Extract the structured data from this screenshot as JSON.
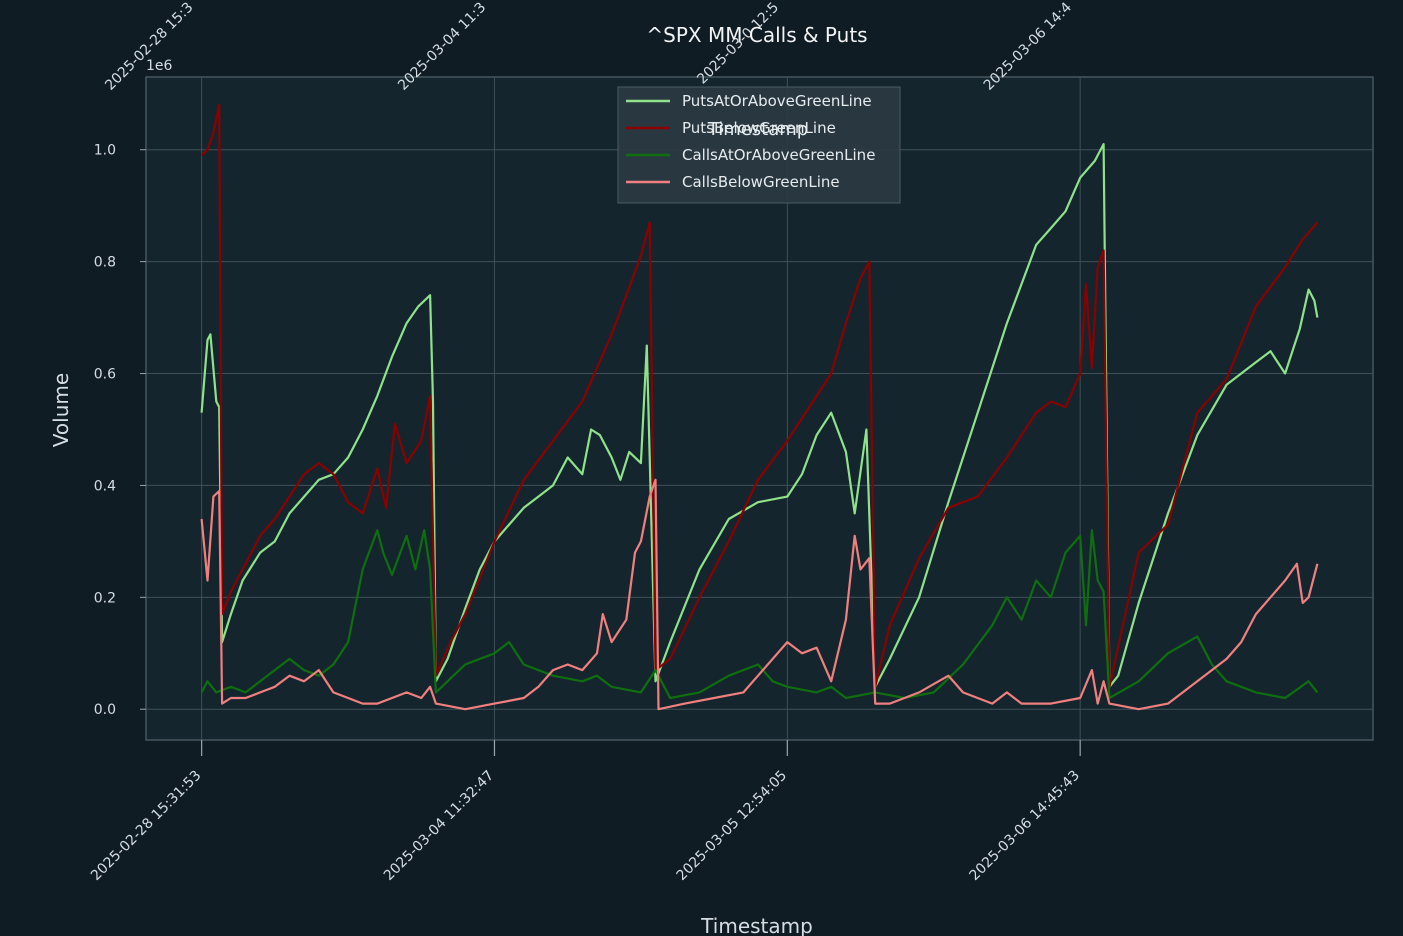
{
  "chart_data": {
    "type": "line",
    "title": "^SPX MM Calls & Puts",
    "xlabel": "Timestamp",
    "ylabel": "Volume",
    "y_offset_label": "1e6",
    "ylim": [
      -0.055,
      1.13
    ],
    "yticks": [
      0.0,
      0.2,
      0.4,
      0.6,
      0.8,
      1.0
    ],
    "ytick_labels": [
      "0.0",
      "0.2",
      "0.4",
      "0.6",
      "0.8",
      "1.0"
    ],
    "xlim": [
      -0.19,
      4.0
    ],
    "xticks": [
      0,
      1,
      2,
      3
    ],
    "xtick_labels": [
      "2025-02-28 15:31:53",
      "2025-03-04 11:32:47",
      "2025-03-05 12:54:05",
      "2025-03-06 14:45:43"
    ],
    "top_xtick_labels": [
      "2025-02-28 15:3",
      "2025-03-04 11:3",
      "2025-03-0 12:5",
      "2025-03-06 14:4"
    ],
    "ghost_top_label": "Timestamp",
    "grid": true,
    "legend_position": "top-center",
    "y_unit_scale": 1000000,
    "series": [
      {
        "name": "PutsAtOrAboveGreenLine",
        "color": "#8fe28a",
        "points": [
          [
            0.0,
            0.53
          ],
          [
            0.02,
            0.66
          ],
          [
            0.03,
            0.67
          ],
          [
            0.05,
            0.55
          ],
          [
            0.06,
            0.54
          ],
          [
            0.07,
            0.12
          ],
          [
            0.1,
            0.17
          ],
          [
            0.14,
            0.23
          ],
          [
            0.2,
            0.28
          ],
          [
            0.25,
            0.3
          ],
          [
            0.3,
            0.35
          ],
          [
            0.35,
            0.38
          ],
          [
            0.4,
            0.41
          ],
          [
            0.45,
            0.42
          ],
          [
            0.5,
            0.45
          ],
          [
            0.55,
            0.5
          ],
          [
            0.6,
            0.56
          ],
          [
            0.65,
            0.63
          ],
          [
            0.7,
            0.69
          ],
          [
            0.74,
            0.72
          ],
          [
            0.78,
            0.74
          ],
          [
            0.79,
            0.55
          ],
          [
            0.8,
            0.05
          ],
          [
            0.84,
            0.09
          ],
          [
            0.9,
            0.18
          ],
          [
            0.95,
            0.25
          ],
          [
            1.0,
            0.3
          ],
          [
            1.05,
            0.33
          ],
          [
            1.1,
            0.36
          ],
          [
            1.15,
            0.38
          ],
          [
            1.2,
            0.4
          ],
          [
            1.25,
            0.45
          ],
          [
            1.3,
            0.42
          ],
          [
            1.33,
            0.5
          ],
          [
            1.36,
            0.49
          ],
          [
            1.4,
            0.45
          ],
          [
            1.43,
            0.41
          ],
          [
            1.46,
            0.46
          ],
          [
            1.5,
            0.44
          ],
          [
            1.52,
            0.65
          ],
          [
            1.55,
            0.05
          ],
          [
            1.6,
            0.12
          ],
          [
            1.7,
            0.25
          ],
          [
            1.8,
            0.34
          ],
          [
            1.9,
            0.37
          ],
          [
            2.0,
            0.38
          ],
          [
            2.05,
            0.42
          ],
          [
            2.1,
            0.49
          ],
          [
            2.15,
            0.53
          ],
          [
            2.2,
            0.46
          ],
          [
            2.23,
            0.35
          ],
          [
            2.27,
            0.5
          ],
          [
            2.3,
            0.04
          ],
          [
            2.35,
            0.09
          ],
          [
            2.45,
            0.2
          ],
          [
            2.55,
            0.37
          ],
          [
            2.65,
            0.53
          ],
          [
            2.75,
            0.69
          ],
          [
            2.85,
            0.83
          ],
          [
            2.9,
            0.86
          ],
          [
            2.95,
            0.89
          ],
          [
            3.0,
            0.95
          ],
          [
            3.05,
            0.98
          ],
          [
            3.08,
            1.01
          ],
          [
            3.1,
            0.04
          ],
          [
            3.13,
            0.06
          ],
          [
            3.2,
            0.19
          ],
          [
            3.3,
            0.35
          ],
          [
            3.4,
            0.49
          ],
          [
            3.5,
            0.58
          ],
          [
            3.55,
            0.6
          ],
          [
            3.6,
            0.62
          ],
          [
            3.65,
            0.64
          ],
          [
            3.7,
            0.6
          ],
          [
            3.75,
            0.68
          ],
          [
            3.78,
            0.75
          ],
          [
            3.8,
            0.73
          ],
          [
            3.81,
            0.7
          ]
        ]
      },
      {
        "name": "PutsBelowGreenLine",
        "color": "#8b0000",
        "points": [
          [
            0.0,
            0.99
          ],
          [
            0.02,
            1.0
          ],
          [
            0.04,
            1.03
          ],
          [
            0.06,
            1.08
          ],
          [
            0.07,
            0.17
          ],
          [
            0.1,
            0.21
          ],
          [
            0.15,
            0.26
          ],
          [
            0.2,
            0.31
          ],
          [
            0.25,
            0.34
          ],
          [
            0.3,
            0.38
          ],
          [
            0.35,
            0.42
          ],
          [
            0.4,
            0.44
          ],
          [
            0.45,
            0.42
          ],
          [
            0.5,
            0.37
          ],
          [
            0.55,
            0.35
          ],
          [
            0.6,
            0.43
          ],
          [
            0.63,
            0.36
          ],
          [
            0.66,
            0.51
          ],
          [
            0.7,
            0.44
          ],
          [
            0.75,
            0.48
          ],
          [
            0.78,
            0.56
          ],
          [
            0.8,
            0.06
          ],
          [
            0.85,
            0.12
          ],
          [
            0.9,
            0.17
          ],
          [
            1.0,
            0.3
          ],
          [
            1.1,
            0.41
          ],
          [
            1.2,
            0.48
          ],
          [
            1.3,
            0.55
          ],
          [
            1.4,
            0.67
          ],
          [
            1.45,
            0.74
          ],
          [
            1.5,
            0.81
          ],
          [
            1.53,
            0.87
          ],
          [
            1.55,
            0.07
          ],
          [
            1.6,
            0.09
          ],
          [
            1.7,
            0.2
          ],
          [
            1.8,
            0.3
          ],
          [
            1.9,
            0.41
          ],
          [
            2.0,
            0.48
          ],
          [
            2.1,
            0.56
          ],
          [
            2.15,
            0.6
          ],
          [
            2.2,
            0.69
          ],
          [
            2.25,
            0.77
          ],
          [
            2.28,
            0.8
          ],
          [
            2.3,
            0.04
          ],
          [
            2.35,
            0.15
          ],
          [
            2.45,
            0.27
          ],
          [
            2.55,
            0.36
          ],
          [
            2.65,
            0.38
          ],
          [
            2.75,
            0.45
          ],
          [
            2.85,
            0.53
          ],
          [
            2.9,
            0.55
          ],
          [
            2.95,
            0.54
          ],
          [
            3.0,
            0.6
          ],
          [
            3.02,
            0.76
          ],
          [
            3.04,
            0.61
          ],
          [
            3.06,
            0.79
          ],
          [
            3.08,
            0.82
          ],
          [
            3.1,
            0.04
          ],
          [
            3.15,
            0.16
          ],
          [
            3.2,
            0.28
          ],
          [
            3.3,
            0.33
          ],
          [
            3.4,
            0.53
          ],
          [
            3.5,
            0.59
          ],
          [
            3.6,
            0.72
          ],
          [
            3.7,
            0.79
          ],
          [
            3.76,
            0.84
          ],
          [
            3.81,
            0.87
          ]
        ]
      },
      {
        "name": "CallsAtOrAboveGreenLine",
        "color": "#0f6e0f",
        "points": [
          [
            0.0,
            0.03
          ],
          [
            0.02,
            0.05
          ],
          [
            0.05,
            0.03
          ],
          [
            0.1,
            0.04
          ],
          [
            0.15,
            0.03
          ],
          [
            0.2,
            0.05
          ],
          [
            0.25,
            0.07
          ],
          [
            0.3,
            0.09
          ],
          [
            0.35,
            0.07
          ],
          [
            0.4,
            0.06
          ],
          [
            0.45,
            0.08
          ],
          [
            0.5,
            0.12
          ],
          [
            0.55,
            0.25
          ],
          [
            0.6,
            0.32
          ],
          [
            0.62,
            0.28
          ],
          [
            0.65,
            0.24
          ],
          [
            0.7,
            0.31
          ],
          [
            0.73,
            0.25
          ],
          [
            0.76,
            0.32
          ],
          [
            0.78,
            0.25
          ],
          [
            0.8,
            0.03
          ],
          [
            0.9,
            0.08
          ],
          [
            1.0,
            0.1
          ],
          [
            1.05,
            0.12
          ],
          [
            1.1,
            0.08
          ],
          [
            1.2,
            0.06
          ],
          [
            1.3,
            0.05
          ],
          [
            1.35,
            0.06
          ],
          [
            1.4,
            0.04
          ],
          [
            1.5,
            0.03
          ],
          [
            1.55,
            0.07
          ],
          [
            1.6,
            0.02
          ],
          [
            1.7,
            0.03
          ],
          [
            1.8,
            0.06
          ],
          [
            1.9,
            0.08
          ],
          [
            1.95,
            0.05
          ],
          [
            2.0,
            0.04
          ],
          [
            2.1,
            0.03
          ],
          [
            2.15,
            0.04
          ],
          [
            2.2,
            0.02
          ],
          [
            2.3,
            0.03
          ],
          [
            2.4,
            0.02
          ],
          [
            2.5,
            0.03
          ],
          [
            2.6,
            0.08
          ],
          [
            2.7,
            0.15
          ],
          [
            2.75,
            0.2
          ],
          [
            2.8,
            0.16
          ],
          [
            2.85,
            0.23
          ],
          [
            2.9,
            0.2
          ],
          [
            2.95,
            0.28
          ],
          [
            3.0,
            0.31
          ],
          [
            3.02,
            0.15
          ],
          [
            3.04,
            0.32
          ],
          [
            3.06,
            0.23
          ],
          [
            3.08,
            0.21
          ],
          [
            3.1,
            0.02
          ],
          [
            3.2,
            0.05
          ],
          [
            3.3,
            0.1
          ],
          [
            3.4,
            0.13
          ],
          [
            3.45,
            0.08
          ],
          [
            3.5,
            0.05
          ],
          [
            3.6,
            0.03
          ],
          [
            3.7,
            0.02
          ],
          [
            3.78,
            0.05
          ],
          [
            3.81,
            0.03
          ]
        ]
      },
      {
        "name": "CallsBelowGreenLine",
        "color": "#f08080",
        "points": [
          [
            0.0,
            0.34
          ],
          [
            0.02,
            0.23
          ],
          [
            0.04,
            0.38
          ],
          [
            0.06,
            0.39
          ],
          [
            0.07,
            0.01
          ],
          [
            0.1,
            0.02
          ],
          [
            0.15,
            0.02
          ],
          [
            0.2,
            0.03
          ],
          [
            0.25,
            0.04
          ],
          [
            0.3,
            0.06
          ],
          [
            0.35,
            0.05
          ],
          [
            0.4,
            0.07
          ],
          [
            0.45,
            0.03
          ],
          [
            0.5,
            0.02
          ],
          [
            0.55,
            0.01
          ],
          [
            0.6,
            0.01
          ],
          [
            0.65,
            0.02
          ],
          [
            0.7,
            0.03
          ],
          [
            0.75,
            0.02
          ],
          [
            0.78,
            0.04
          ],
          [
            0.8,
            0.01
          ],
          [
            0.9,
            0.0
          ],
          [
            1.0,
            0.01
          ],
          [
            1.1,
            0.02
          ],
          [
            1.15,
            0.04
          ],
          [
            1.2,
            0.07
          ],
          [
            1.25,
            0.08
          ],
          [
            1.3,
            0.07
          ],
          [
            1.35,
            0.1
          ],
          [
            1.37,
            0.17
          ],
          [
            1.4,
            0.12
          ],
          [
            1.45,
            0.16
          ],
          [
            1.48,
            0.28
          ],
          [
            1.5,
            0.3
          ],
          [
            1.53,
            0.38
          ],
          [
            1.55,
            0.41
          ],
          [
            1.56,
            0.0
          ],
          [
            1.65,
            0.01
          ],
          [
            1.75,
            0.02
          ],
          [
            1.85,
            0.03
          ],
          [
            1.9,
            0.06
          ],
          [
            2.0,
            0.12
          ],
          [
            2.05,
            0.1
          ],
          [
            2.1,
            0.11
          ],
          [
            2.15,
            0.05
          ],
          [
            2.2,
            0.16
          ],
          [
            2.23,
            0.31
          ],
          [
            2.25,
            0.25
          ],
          [
            2.28,
            0.27
          ],
          [
            2.3,
            0.01
          ],
          [
            2.35,
            0.01
          ],
          [
            2.45,
            0.03
          ],
          [
            2.55,
            0.06
          ],
          [
            2.6,
            0.03
          ],
          [
            2.7,
            0.01
          ],
          [
            2.75,
            0.03
          ],
          [
            2.8,
            0.01
          ],
          [
            2.9,
            0.01
          ],
          [
            3.0,
            0.02
          ],
          [
            3.04,
            0.07
          ],
          [
            3.06,
            0.01
          ],
          [
            3.08,
            0.05
          ],
          [
            3.1,
            0.01
          ],
          [
            3.2,
            0.0
          ],
          [
            3.3,
            0.01
          ],
          [
            3.4,
            0.05
          ],
          [
            3.5,
            0.09
          ],
          [
            3.55,
            0.12
          ],
          [
            3.6,
            0.17
          ],
          [
            3.65,
            0.2
          ],
          [
            3.7,
            0.23
          ],
          [
            3.74,
            0.26
          ],
          [
            3.76,
            0.19
          ],
          [
            3.78,
            0.2
          ],
          [
            3.81,
            0.26
          ]
        ]
      }
    ]
  }
}
